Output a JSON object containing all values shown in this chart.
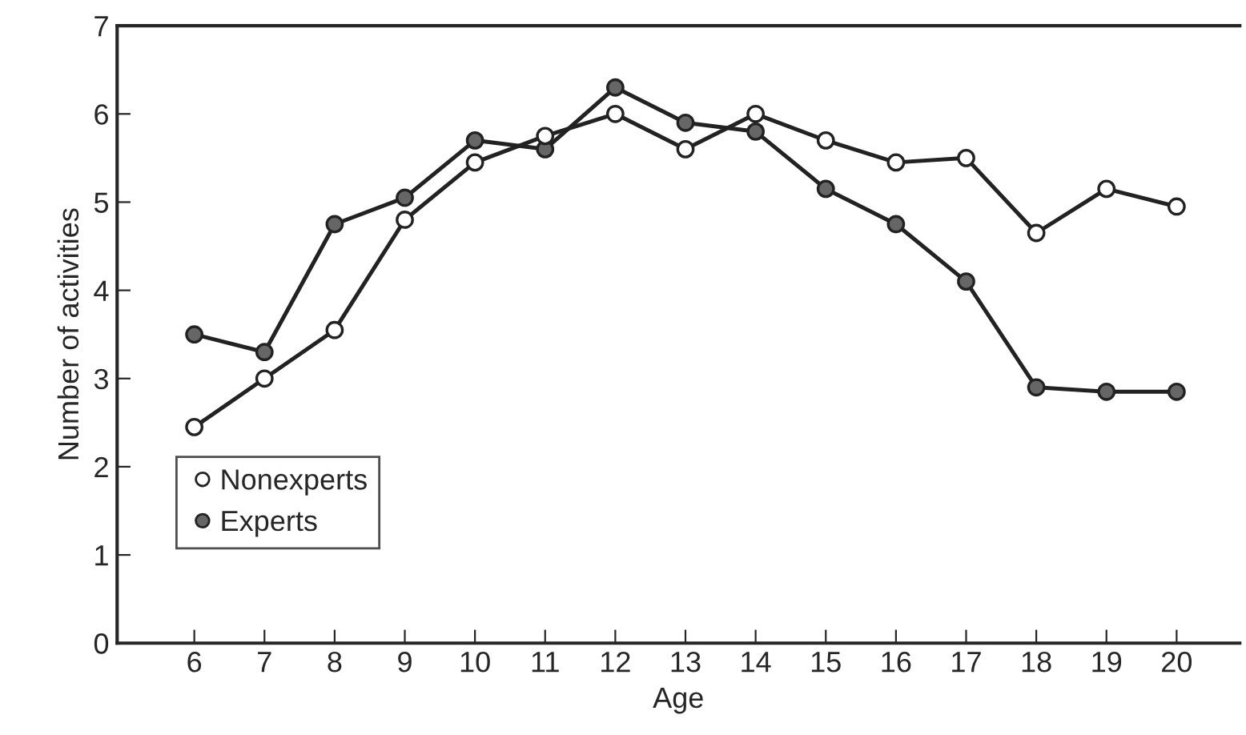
{
  "chart_data": {
    "type": "line",
    "xlabel": "Age",
    "ylabel": "Number of activities",
    "x": [
      6,
      7,
      8,
      9,
      10,
      11,
      12,
      13,
      14,
      15,
      16,
      17,
      18,
      19,
      20
    ],
    "series": [
      {
        "name": "Nonexperts",
        "color": "#ffffff",
        "values": [
          2.45,
          3.0,
          3.55,
          4.8,
          5.45,
          5.75,
          6.0,
          5.6,
          6.0,
          5.7,
          5.45,
          5.5,
          4.65,
          5.15,
          4.95
        ]
      },
      {
        "name": "Experts",
        "color": "#666666",
        "values": [
          3.5,
          3.3,
          4.75,
          5.05,
          5.7,
          5.6,
          6.3,
          5.9,
          5.8,
          5.15,
          4.75,
          4.1,
          2.9,
          2.85,
          2.85
        ]
      }
    ],
    "xlim": [
      4.9,
      20.9
    ],
    "xticks": [
      6,
      7,
      8,
      9,
      10,
      11,
      12,
      13,
      14,
      15,
      16,
      17,
      18,
      19,
      20
    ],
    "ylim": [
      0,
      7
    ],
    "yticks": [
      0,
      1,
      2,
      3,
      4,
      5,
      6,
      7
    ],
    "grid": false,
    "legend": "lower left",
    "marker": "circle",
    "line_style": "solid"
  }
}
